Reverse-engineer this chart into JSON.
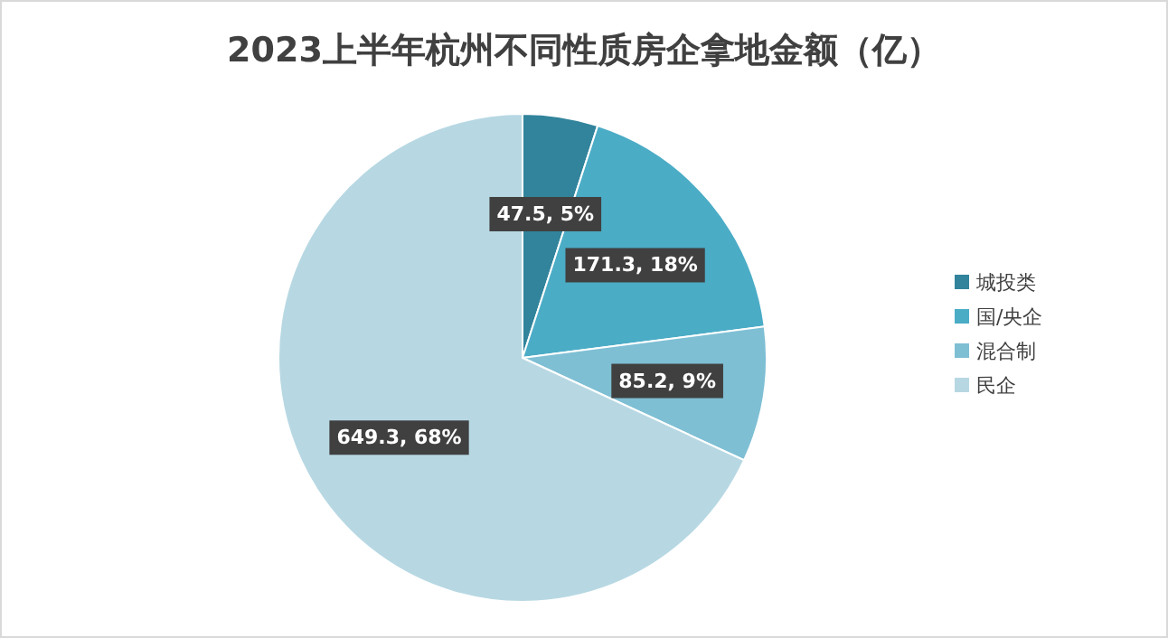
{
  "chart_data": {
    "type": "pie",
    "title": "2023上半年杭州不同性质房企拿地金额（亿）",
    "categories": [
      "城投类",
      "国/央企",
      "混合制",
      "民企"
    ],
    "values": [
      47.5,
      171.3,
      85.2,
      649.3
    ],
    "colors": [
      "#31849b",
      "#4bacc6",
      "#7ebfd4",
      "#b7d8e3"
    ],
    "value_labels": [
      "47.5, 5%",
      "171.3, 18%",
      "85.2, 9%",
      "649.3, 68%"
    ],
    "legend": "right"
  }
}
